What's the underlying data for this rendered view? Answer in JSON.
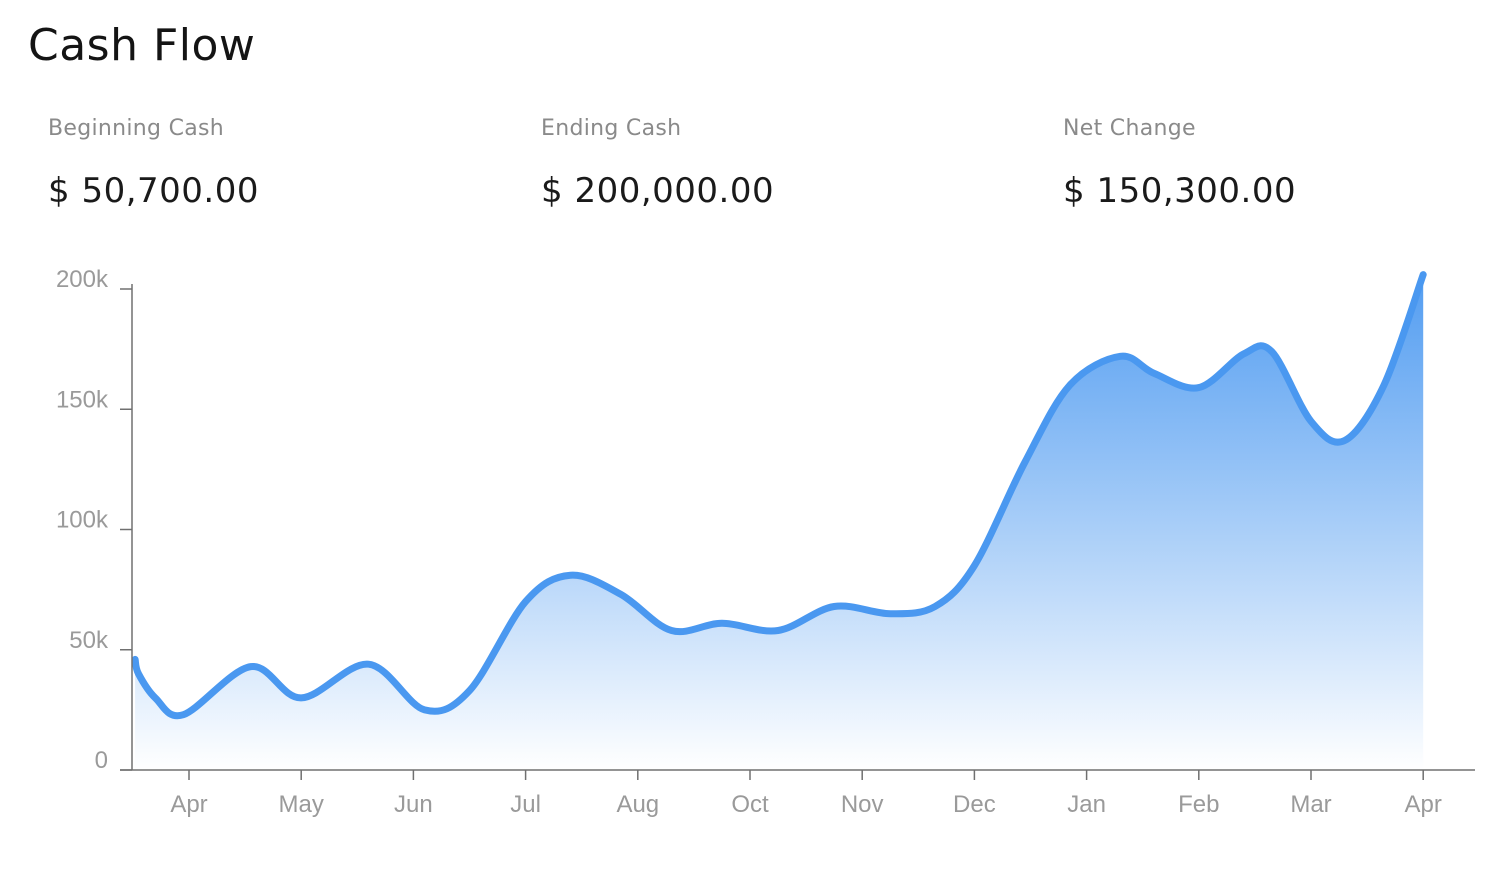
{
  "title": "Cash Flow",
  "stats": {
    "beginning": {
      "label": "Beginning Cash",
      "value": "$ 50,700.00"
    },
    "ending": {
      "label": "Ending Cash",
      "value": "$ 200,000.00"
    },
    "net": {
      "label": "Net Change",
      "value": "$ 150,300.00"
    }
  },
  "colors": {
    "line": "#4a98f0",
    "fill_top": "#4a98f0",
    "fill_bottom": "#ffffff",
    "axis": "#707070",
    "tick_label": "#9a9a9a"
  },
  "chart_data": {
    "type": "area",
    "title": "Cash Flow",
    "xlabel": "",
    "ylabel": "",
    "ylim": [
      0,
      200000
    ],
    "yticks": [
      0,
      50000,
      100000,
      150000,
      200000
    ],
    "ytick_labels": [
      "0",
      "50k",
      "100k",
      "150k",
      "200k"
    ],
    "xlim": [
      -0.5,
      11
    ],
    "xticks": [
      0,
      1,
      2,
      3,
      4,
      5,
      6,
      7,
      8,
      9,
      10,
      11
    ],
    "xtick_labels": [
      "Apr",
      "May",
      "Jun",
      "Jul",
      "Aug",
      "Oct",
      "Nov",
      "Dec",
      "Jan",
      "Feb",
      "Mar",
      "Apr"
    ],
    "grid": false,
    "series": [
      {
        "x": [
          -0.48,
          -0.45,
          -0.3,
          -0.05,
          0.55,
          1.0,
          1.6,
          2.1,
          2.5,
          3.0,
          3.4,
          3.85,
          4.3,
          4.75,
          5.25,
          5.75,
          6.25,
          6.65,
          7.0,
          7.45,
          7.85,
          8.3,
          8.6,
          9.0,
          9.4,
          9.65,
          10.0,
          10.3,
          10.65,
          11.0
        ],
        "y": [
          46000,
          40000,
          30000,
          23000,
          43000,
          30000,
          44000,
          25000,
          33000,
          70000,
          81000,
          73000,
          58000,
          61000,
          58000,
          68000,
          65000,
          68000,
          85000,
          128000,
          160000,
          172000,
          165000,
          159000,
          173000,
          174000,
          145000,
          137000,
          160000,
          206000
        ]
      }
    ]
  }
}
